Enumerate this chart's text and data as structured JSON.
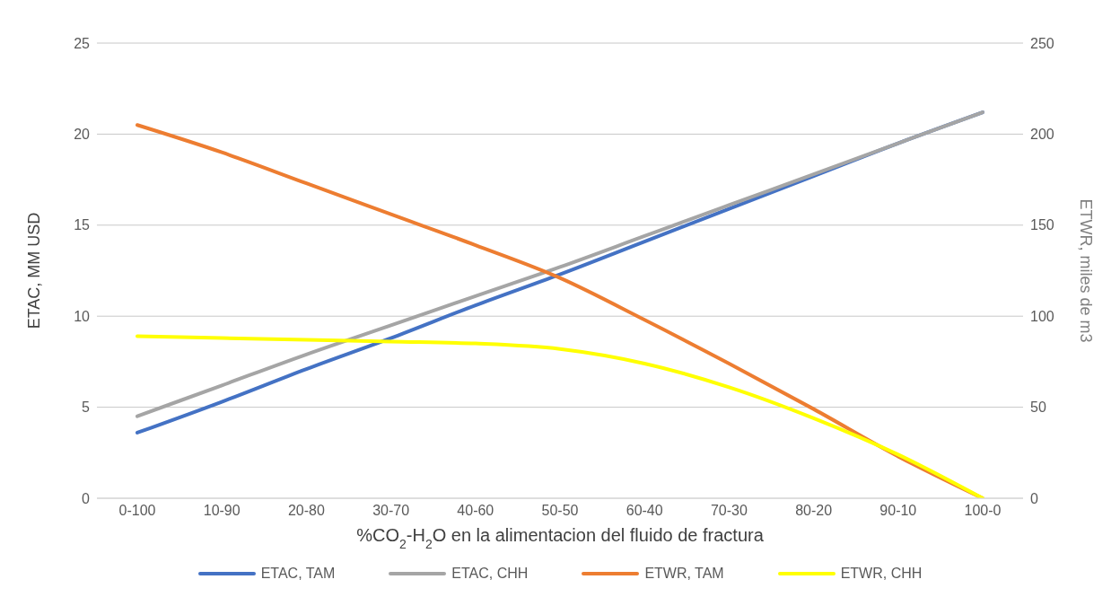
{
  "chart_data": {
    "type": "line",
    "xlabel": "%CO$_{2}$-H$_{2}$O en la alimentacion del fluido de fractura",
    "ylabel": "ETAC, MM USD",
    "y2label": "ETWR, miles de m3",
    "categories": [
      "0-100",
      "10-90",
      "20-80",
      "30-70",
      "40-60",
      "50-50",
      "60-40",
      "70-30",
      "80-20",
      "90-10",
      "100-0"
    ],
    "series": [
      {
        "name": "ETAC, TAM",
        "color": "#4472c4",
        "values": [
          3.6,
          5.3,
          7.1,
          8.8,
          10.6,
          12.3,
          14.1,
          15.9,
          17.7,
          19.5,
          21.2
        ]
      },
      {
        "name": "ETAC, CHH",
        "color": "#a5a5a5",
        "values": [
          4.5,
          6.2,
          7.9,
          9.5,
          11.1,
          12.7,
          14.4,
          16.1,
          17.8,
          19.5,
          21.2
        ]
      },
      {
        "name": "ETWR, TAM",
        "color": "#ed7d31",
        "axis": "y2",
        "values": [
          205,
          190,
          173,
          156,
          139,
          121,
          98,
          74,
          49,
          23,
          0
        ]
      },
      {
        "name": "ETWR, CHH",
        "color": "#ffff00",
        "axis": "y2",
        "values": [
          89,
          88,
          87,
          86,
          85,
          82,
          74,
          61,
          44,
          24,
          0
        ]
      }
    ],
    "ylim": [
      0,
      25
    ],
    "yticks": [
      0,
      5,
      10,
      15,
      20,
      25
    ],
    "y2lim": [
      0,
      250
    ],
    "y2ticks": [
      0,
      50,
      100,
      150,
      200,
      250
    ],
    "grid": "y",
    "legend": "bottom",
    "marker": "none",
    "line_style": "solid"
  }
}
